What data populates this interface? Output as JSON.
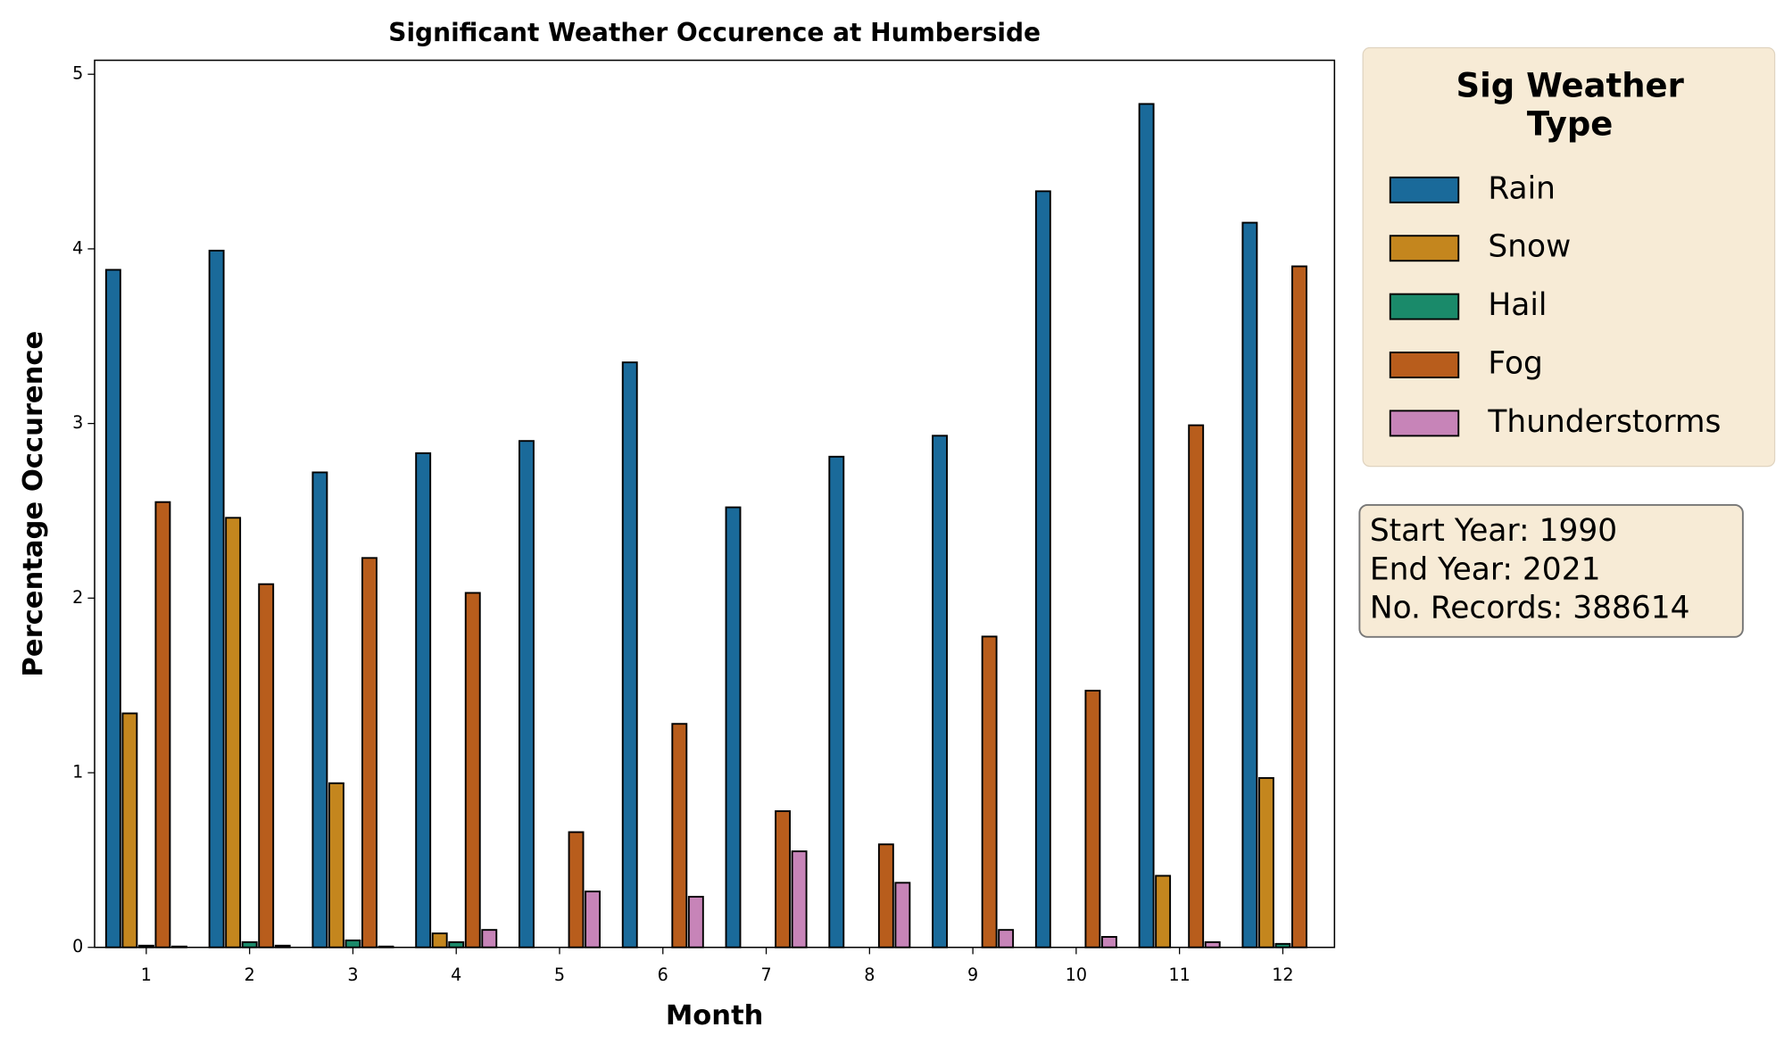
{
  "chart_data": {
    "type": "grouped_bar",
    "title": "Significant Weather Occurence at Humberside",
    "x_label": "Month",
    "y_label": "Percentage Occurence",
    "categories": [
      "1",
      "2",
      "3",
      "4",
      "5",
      "6",
      "7",
      "8",
      "9",
      "10",
      "11",
      "12"
    ],
    "series": [
      {
        "name": "Rain",
        "color": "#1a6a9a",
        "values": [
          3.88,
          3.99,
          2.72,
          2.83,
          2.9,
          3.35,
          2.52,
          2.81,
          2.93,
          4.33,
          4.83,
          4.15
        ]
      },
      {
        "name": "Snow",
        "color": "#c4861e",
        "values": [
          1.34,
          2.46,
          0.94,
          0.08,
          0,
          0,
          0,
          0,
          0,
          0,
          0.41,
          0.97
        ]
      },
      {
        "name": "Hail",
        "color": "#1a8a6a",
        "values": [
          0.01,
          0.03,
          0.04,
          0.03,
          0,
          0,
          0,
          0,
          0,
          0,
          0,
          0.02
        ]
      },
      {
        "name": "Fog",
        "color": "#b85d1c",
        "values": [
          2.55,
          2.08,
          2.23,
          2.03,
          0.66,
          1.28,
          0.78,
          0.59,
          1.78,
          1.47,
          2.99,
          3.9
        ]
      },
      {
        "name": "Thunderstorms",
        "color": "#c784b8",
        "values": [
          0.005,
          0.01,
          0.005,
          0.1,
          0.32,
          0.29,
          0.55,
          0.37,
          0.1,
          0.06,
          0.03,
          0
        ]
      }
    ],
    "ylim": [
      0,
      5.08
    ],
    "yticks": [
      0,
      1,
      2,
      3,
      4,
      5
    ],
    "legend_title": "Sig Weather Type",
    "annotations": [
      "Start Year: 1990",
      "End Year: 2021",
      "No. Records: 388614"
    ]
  }
}
